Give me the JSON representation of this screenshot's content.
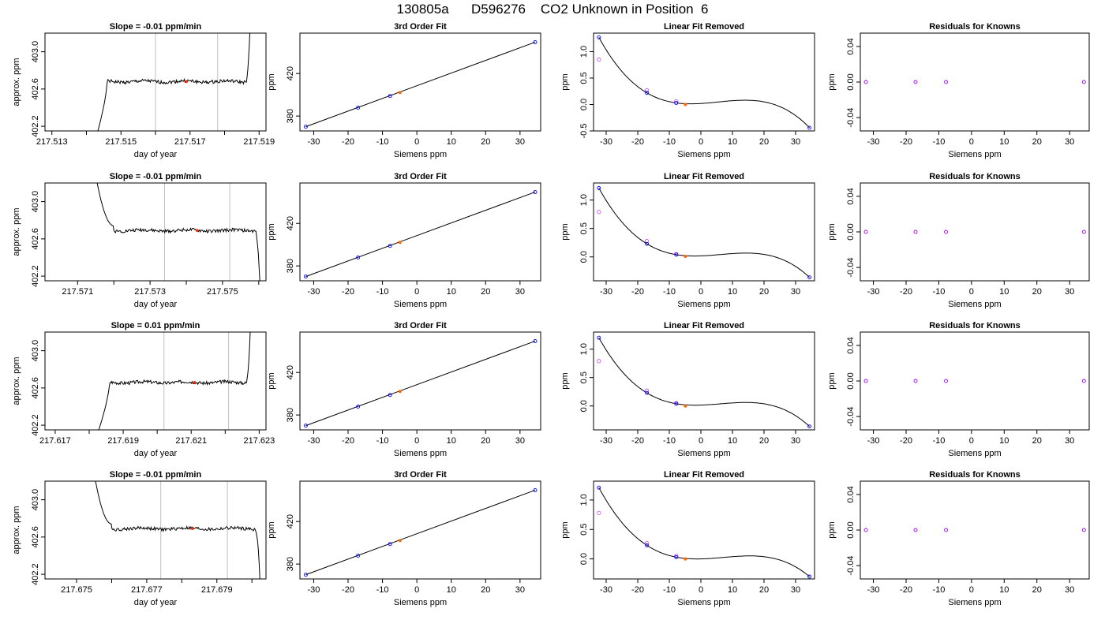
{
  "page": {
    "title": "130805a      D596276    CO2 Unknown in Position  6"
  },
  "colors": {
    "axis": "#000000",
    "trace": "#000000",
    "window_lines": "#bfbfbf",
    "mean_marker": "#ff2a00",
    "known_points": "#0000ff",
    "residual_points": "#aa00ff",
    "raw_points": "#cc44ff",
    "unknown_point": "#ff6600"
  },
  "chart_data": [
    {
      "type": "line",
      "panel": "time",
      "row": 0,
      "title": "Slope =  -0.01  ppm/min",
      "xlabel": "day of year",
      "ylabel": "approx. ppm",
      "xlim": [
        217.5128,
        217.5192
      ],
      "ylim": [
        402.15,
        403.2
      ],
      "xticks": [
        217.513,
        217.514,
        217.515,
        217.516,
        217.517,
        217.518,
        217.519
      ],
      "xtick_labels": [
        "217.513",
        "",
        "217.515",
        "",
        "217.517",
        "",
        "217.519"
      ],
      "yticks": [
        402.2,
        402.6,
        403.0
      ],
      "ytick_labels": [
        "402.2",
        "402.6",
        "403.0"
      ],
      "window_lines": [
        217.516,
        217.5178
      ],
      "mean_point": {
        "x": 217.5169,
        "y": 402.68
      },
      "trace": {
        "start": 217.5142,
        "plateau_start": 217.5146,
        "end": 217.5188,
        "tail": "up",
        "level": 402.68,
        "seed": 1
      }
    },
    {
      "type": "scatter",
      "panel": "fit",
      "row": 0,
      "title": "3rd Order Fit",
      "xlabel": "Siemens ppm",
      "ylabel": "ppm",
      "xlim": [
        -34,
        36
      ],
      "ylim": [
        366,
        458
      ],
      "xticks": [
        -30,
        -20,
        -10,
        0,
        10,
        20,
        30
      ],
      "xtick_labels": [
        "-30",
        "-20",
        "-10",
        "0",
        "10",
        "20",
        "30"
      ],
      "yticks": [
        380,
        420
      ],
      "ytick_labels": [
        "380",
        "420"
      ],
      "knowns": {
        "x": [
          -32.3,
          -17.1,
          -7.8,
          34.4
        ],
        "y": [
          370.0,
          387.9,
          398.8,
          449.5
        ]
      },
      "unknown": {
        "x": -4.9,
        "y": 402.2
      },
      "line": {
        "x": [
          -32.3,
          34.4
        ],
        "y": [
          370.0,
          449.5
        ]
      }
    },
    {
      "type": "scatter",
      "panel": "linfit",
      "row": 0,
      "title": "Linear Fit Removed",
      "xlabel": "Siemens ppm",
      "ylabel": "ppm",
      "xlim": [
        -34,
        36
      ],
      "ylim": [
        -0.5,
        1.35
      ],
      "xticks": [
        -30,
        -20,
        -10,
        0,
        10,
        20,
        30
      ],
      "xtick_labels": [
        "-30",
        "-20",
        "-10",
        "0",
        "10",
        "20",
        "30"
      ],
      "yticks": [
        -0.5,
        0.0,
        0.5,
        1.0
      ],
      "ytick_labels": [
        "-0.5",
        "0.0",
        "0.5",
        "1.0"
      ],
      "curve": {
        "x": [
          -32.3,
          -17.1,
          -7.8,
          34.4
        ],
        "y": [
          1.27,
          0.22,
          0.03,
          -0.44
        ]
      },
      "knowns": {
        "x": [
          -32.3,
          -17.1,
          -7.8,
          34.4
        ],
        "y": [
          1.27,
          0.22,
          0.03,
          -0.44
        ]
      },
      "raw": {
        "x": [
          -32.3,
          -17.1,
          -7.8
        ],
        "y": [
          0.85,
          0.27,
          0.06
        ]
      },
      "unknown": {
        "x": -4.9,
        "y": 0.0
      }
    },
    {
      "type": "scatter",
      "panel": "resid",
      "row": 0,
      "title": "Residuals for Knowns",
      "xlabel": "Siemens ppm",
      "ylabel": "ppm",
      "xlim": [
        -34,
        36
      ],
      "ylim": [
        -0.055,
        0.055
      ],
      "xticks": [
        -30,
        -20,
        -10,
        0,
        10,
        20,
        30
      ],
      "xtick_labels": [
        "-30",
        "-20",
        "-10",
        "0",
        "10",
        "20",
        "30"
      ],
      "yticks": [
        -0.04,
        0.0,
        0.04
      ],
      "ytick_labels": [
        "-0.04",
        "0.00",
        "0.04"
      ],
      "residuals": {
        "x": [
          -32.3,
          -17.1,
          -7.8,
          34.4
        ],
        "y": [
          0.0,
          0.0,
          0.0,
          0.0
        ]
      }
    },
    {
      "type": "line",
      "panel": "time",
      "row": 1,
      "title": "Slope =  -0.01  ppm/min",
      "xlabel": "day of year",
      "ylabel": "approx. ppm",
      "xlim": [
        217.5701,
        217.5762
      ],
      "ylim": [
        402.15,
        403.2
      ],
      "xticks": [
        217.571,
        217.572,
        217.573,
        217.574,
        217.575,
        217.576
      ],
      "xtick_labels": [
        "217.571",
        "",
        "217.573",
        "",
        "217.575",
        ""
      ],
      "yticks": [
        402.2,
        402.6,
        403.0
      ],
      "ytick_labels": [
        "402.2",
        "402.6",
        "403.0"
      ],
      "window_lines": [
        217.5734,
        217.5752
      ],
      "mean_point": {
        "x": 217.5743,
        "y": 402.69
      },
      "trace": {
        "start": 217.5712,
        "plateau_start": 217.572,
        "end": 217.5761,
        "tail": "down",
        "level": 402.69,
        "head": "down",
        "seed": 2
      }
    },
    {
      "type": "scatter",
      "panel": "fit",
      "row": 1,
      "title": "3rd Order Fit",
      "xlabel": "Siemens ppm",
      "ylabel": "ppm",
      "xlim": [
        -34,
        36
      ],
      "ylim": [
        366,
        458
      ],
      "xticks": [
        -30,
        -20,
        -10,
        0,
        10,
        20,
        30
      ],
      "xtick_labels": [
        "-30",
        "-20",
        "-10",
        "0",
        "10",
        "20",
        "30"
      ],
      "yticks": [
        380,
        420
      ],
      "ytick_labels": [
        "380",
        "420"
      ],
      "knowns": {
        "x": [
          -32.3,
          -17.1,
          -7.8,
          34.4
        ],
        "y": [
          370.0,
          387.9,
          398.8,
          449.5
        ]
      },
      "unknown": {
        "x": -4.9,
        "y": 402.2
      },
      "line": {
        "x": [
          -32.3,
          34.4
        ],
        "y": [
          370.0,
          449.5
        ]
      }
    },
    {
      "type": "scatter",
      "panel": "linfit",
      "row": 1,
      "title": "Linear Fit Removed",
      "xlabel": "Siemens ppm",
      "ylabel": "ppm",
      "xlim": [
        -34,
        36
      ],
      "ylim": [
        -0.42,
        1.3
      ],
      "xticks": [
        -30,
        -20,
        -10,
        0,
        10,
        20,
        30
      ],
      "xtick_labels": [
        "-30",
        "-20",
        "-10",
        "0",
        "10",
        "20",
        "30"
      ],
      "yticks": [
        0.0,
        0.5,
        1.0
      ],
      "ytick_labels": [
        "0.0",
        "0.5",
        "1.0"
      ],
      "curve": {
        "x": [
          -32.3,
          -17.1,
          -7.8,
          34.4
        ],
        "y": [
          1.21,
          0.23,
          0.04,
          -0.36
        ]
      },
      "knowns": {
        "x": [
          -32.3,
          -17.1,
          -7.8,
          34.4
        ],
        "y": [
          1.21,
          0.23,
          0.04,
          -0.36
        ]
      },
      "raw": {
        "x": [
          -32.3,
          -17.1,
          -7.8
        ],
        "y": [
          0.79,
          0.28,
          0.05
        ]
      },
      "unknown": {
        "x": -4.9,
        "y": 0.01
      }
    },
    {
      "type": "scatter",
      "panel": "resid",
      "row": 1,
      "title": "Residuals for Knowns",
      "xlabel": "Siemens ppm",
      "ylabel": "ppm",
      "xlim": [
        -34,
        36
      ],
      "ylim": [
        -0.055,
        0.055
      ],
      "xticks": [
        -30,
        -20,
        -10,
        0,
        10,
        20,
        30
      ],
      "xtick_labels": [
        "-30",
        "-20",
        "-10",
        "0",
        "10",
        "20",
        "30"
      ],
      "yticks": [
        -0.04,
        0.0,
        0.04
      ],
      "ytick_labels": [
        "-0.04",
        "0.00",
        "0.04"
      ],
      "residuals": {
        "x": [
          -32.3,
          -17.1,
          -7.8,
          34.4
        ],
        "y": [
          0.0,
          0.0,
          0.0,
          0.0
        ]
      }
    },
    {
      "type": "line",
      "panel": "time",
      "row": 2,
      "title": "Slope =  0.01  ppm/min",
      "xlabel": "day of year",
      "ylabel": "approx. ppm",
      "xlim": [
        217.6167,
        217.6232
      ],
      "ylim": [
        402.15,
        403.2
      ],
      "xticks": [
        217.617,
        217.618,
        217.619,
        217.62,
        217.621,
        217.622,
        217.623
      ],
      "xtick_labels": [
        "217.617",
        "",
        "217.619",
        "",
        "217.621",
        "",
        "217.623"
      ],
      "yticks": [
        402.2,
        402.6,
        403.0
      ],
      "ytick_labels": [
        "402.2",
        "402.6",
        "403.0"
      ],
      "window_lines": [
        217.6202,
        217.6221
      ],
      "mean_point": {
        "x": 217.6211,
        "y": 402.66
      },
      "trace": {
        "start": 217.6181,
        "plateau_start": 217.6186,
        "end": 217.6228,
        "tail": "up",
        "level": 402.66,
        "seed": 3
      }
    },
    {
      "type": "scatter",
      "panel": "fit",
      "row": 2,
      "title": "3rd Order Fit",
      "xlabel": "Siemens ppm",
      "ylabel": "ppm",
      "xlim": [
        -34,
        36
      ],
      "ylim": [
        366,
        458
      ],
      "xticks": [
        -30,
        -20,
        -10,
        0,
        10,
        20,
        30
      ],
      "xtick_labels": [
        "-30",
        "-20",
        "-10",
        "0",
        "10",
        "20",
        "30"
      ],
      "yticks": [
        380,
        420
      ],
      "ytick_labels": [
        "380",
        "420"
      ],
      "knowns": {
        "x": [
          -32.3,
          -17.1,
          -7.8,
          34.4
        ],
        "y": [
          370.0,
          387.9,
          398.8,
          449.5
        ]
      },
      "unknown": {
        "x": -4.9,
        "y": 402.2
      },
      "line": {
        "x": [
          -32.3,
          34.4
        ],
        "y": [
          370.0,
          449.5
        ]
      }
    },
    {
      "type": "scatter",
      "panel": "linfit",
      "row": 2,
      "title": "Linear Fit Removed",
      "xlabel": "Siemens ppm",
      "ylabel": "ppm",
      "xlim": [
        -34,
        36
      ],
      "ylim": [
        -0.42,
        1.3
      ],
      "xticks": [
        -30,
        -20,
        -10,
        0,
        10,
        20,
        30
      ],
      "xtick_labels": [
        "-30",
        "-20",
        "-10",
        "0",
        "10",
        "20",
        "30"
      ],
      "yticks": [
        0.0,
        0.5,
        1.0
      ],
      "ytick_labels": [
        "0.0",
        "0.5",
        "1.0"
      ],
      "curve": {
        "x": [
          -32.3,
          -17.1,
          -7.8,
          34.4
        ],
        "y": [
          1.2,
          0.23,
          0.04,
          -0.36
        ]
      },
      "knowns": {
        "x": [
          -32.3,
          -17.1,
          -7.8,
          34.4
        ],
        "y": [
          1.2,
          0.23,
          0.04,
          -0.36
        ]
      },
      "raw": {
        "x": [
          -32.3,
          -17.1,
          -7.8
        ],
        "y": [
          0.79,
          0.27,
          0.05
        ]
      },
      "unknown": {
        "x": -4.9,
        "y": 0.0
      }
    },
    {
      "type": "scatter",
      "panel": "resid",
      "row": 2,
      "title": "Residuals for Knowns",
      "xlabel": "Siemens ppm",
      "ylabel": "ppm",
      "xlim": [
        -34,
        36
      ],
      "ylim": [
        -0.055,
        0.055
      ],
      "xticks": [
        -30,
        -20,
        -10,
        0,
        10,
        20,
        30
      ],
      "xtick_labels": [
        "-30",
        "-20",
        "-10",
        "0",
        "10",
        "20",
        "30"
      ],
      "yticks": [
        -0.04,
        0.0,
        0.04
      ],
      "ytick_labels": [
        "-0.04",
        "0.00",
        "0.04"
      ],
      "residuals": {
        "x": [
          -32.3,
          -17.1,
          -7.8,
          34.4
        ],
        "y": [
          0.0,
          0.0,
          0.0,
          0.0
        ]
      }
    },
    {
      "type": "line",
      "panel": "time",
      "row": 3,
      "title": "Slope =  -0.01  ppm/min",
      "xlabel": "day of year",
      "ylabel": "approx. ppm",
      "xlim": [
        217.6741,
        217.6804
      ],
      "ylim": [
        402.15,
        403.2
      ],
      "xticks": [
        217.675,
        217.676,
        217.677,
        217.678,
        217.679,
        217.68
      ],
      "xtick_labels": [
        "217.675",
        "",
        "217.677",
        "",
        "217.679",
        ""
      ],
      "yticks": [
        402.2,
        402.6,
        403.0
      ],
      "ytick_labels": [
        "402.2",
        "402.6",
        "403.0"
      ],
      "window_lines": [
        217.6774,
        217.6793
      ],
      "mean_point": {
        "x": 217.6783,
        "y": 402.69
      },
      "trace": {
        "start": 217.6752,
        "plateau_start": 217.676,
        "end": 217.6803,
        "tail": "down",
        "level": 402.69,
        "head": "down",
        "seed": 4
      }
    },
    {
      "type": "scatter",
      "panel": "fit",
      "row": 3,
      "title": "3rd Order Fit",
      "xlabel": "Siemens ppm",
      "ylabel": "ppm",
      "xlim": [
        -34,
        36
      ],
      "ylim": [
        366,
        458
      ],
      "xticks": [
        -30,
        -20,
        -10,
        0,
        10,
        20,
        30
      ],
      "xtick_labels": [
        "-30",
        "-20",
        "-10",
        "0",
        "10",
        "20",
        "30"
      ],
      "yticks": [
        380,
        420
      ],
      "ytick_labels": [
        "380",
        "420"
      ],
      "knowns": {
        "x": [
          -32.3,
          -17.1,
          -7.8,
          34.4
        ],
        "y": [
          370.0,
          387.9,
          398.8,
          449.5
        ]
      },
      "unknown": {
        "x": -4.9,
        "y": 402.2
      },
      "line": {
        "x": [
          -32.3,
          34.4
        ],
        "y": [
          370.0,
          449.5
        ]
      }
    },
    {
      "type": "scatter",
      "panel": "linfit",
      "row": 3,
      "title": "Linear Fit Removed",
      "xlabel": "Siemens ppm",
      "ylabel": "ppm",
      "xlim": [
        -34,
        36
      ],
      "ylim": [
        -0.34,
        1.32
      ],
      "xticks": [
        -30,
        -20,
        -10,
        0,
        10,
        20,
        30
      ],
      "xtick_labels": [
        "-30",
        "-20",
        "-10",
        "0",
        "10",
        "20",
        "30"
      ],
      "yticks": [
        0.0,
        0.5,
        1.0
      ],
      "ytick_labels": [
        "0.0",
        "0.5",
        "1.0"
      ],
      "curve": {
        "x": [
          -32.3,
          -17.1,
          -7.8,
          34.4
        ],
        "y": [
          1.21,
          0.23,
          0.03,
          -0.3
        ]
      },
      "knowns": {
        "x": [
          -32.3,
          -17.1,
          -7.8,
          34.4
        ],
        "y": [
          1.21,
          0.23,
          0.03,
          -0.3
        ]
      },
      "raw": {
        "x": [
          -32.3,
          -17.1,
          -7.8
        ],
        "y": [
          0.78,
          0.27,
          0.05
        ]
      },
      "unknown": {
        "x": -4.9,
        "y": 0.0
      }
    },
    {
      "type": "scatter",
      "panel": "resid",
      "row": 3,
      "title": "Residuals for Knowns",
      "xlabel": "Siemens ppm",
      "ylabel": "ppm",
      "xlim": [
        -34,
        36
      ],
      "ylim": [
        -0.055,
        0.055
      ],
      "xticks": [
        -30,
        -20,
        -10,
        0,
        10,
        20,
        30
      ],
      "xtick_labels": [
        "-30",
        "-20",
        "-10",
        "0",
        "10",
        "20",
        "30"
      ],
      "yticks": [
        -0.04,
        0.0,
        0.04
      ],
      "ytick_labels": [
        "-0.04",
        "0.00",
        "0.04"
      ],
      "residuals": {
        "x": [
          -32.3,
          -17.1,
          -7.8,
          34.4
        ],
        "y": [
          0.0,
          0.0,
          0.0,
          0.0
        ]
      }
    }
  ]
}
